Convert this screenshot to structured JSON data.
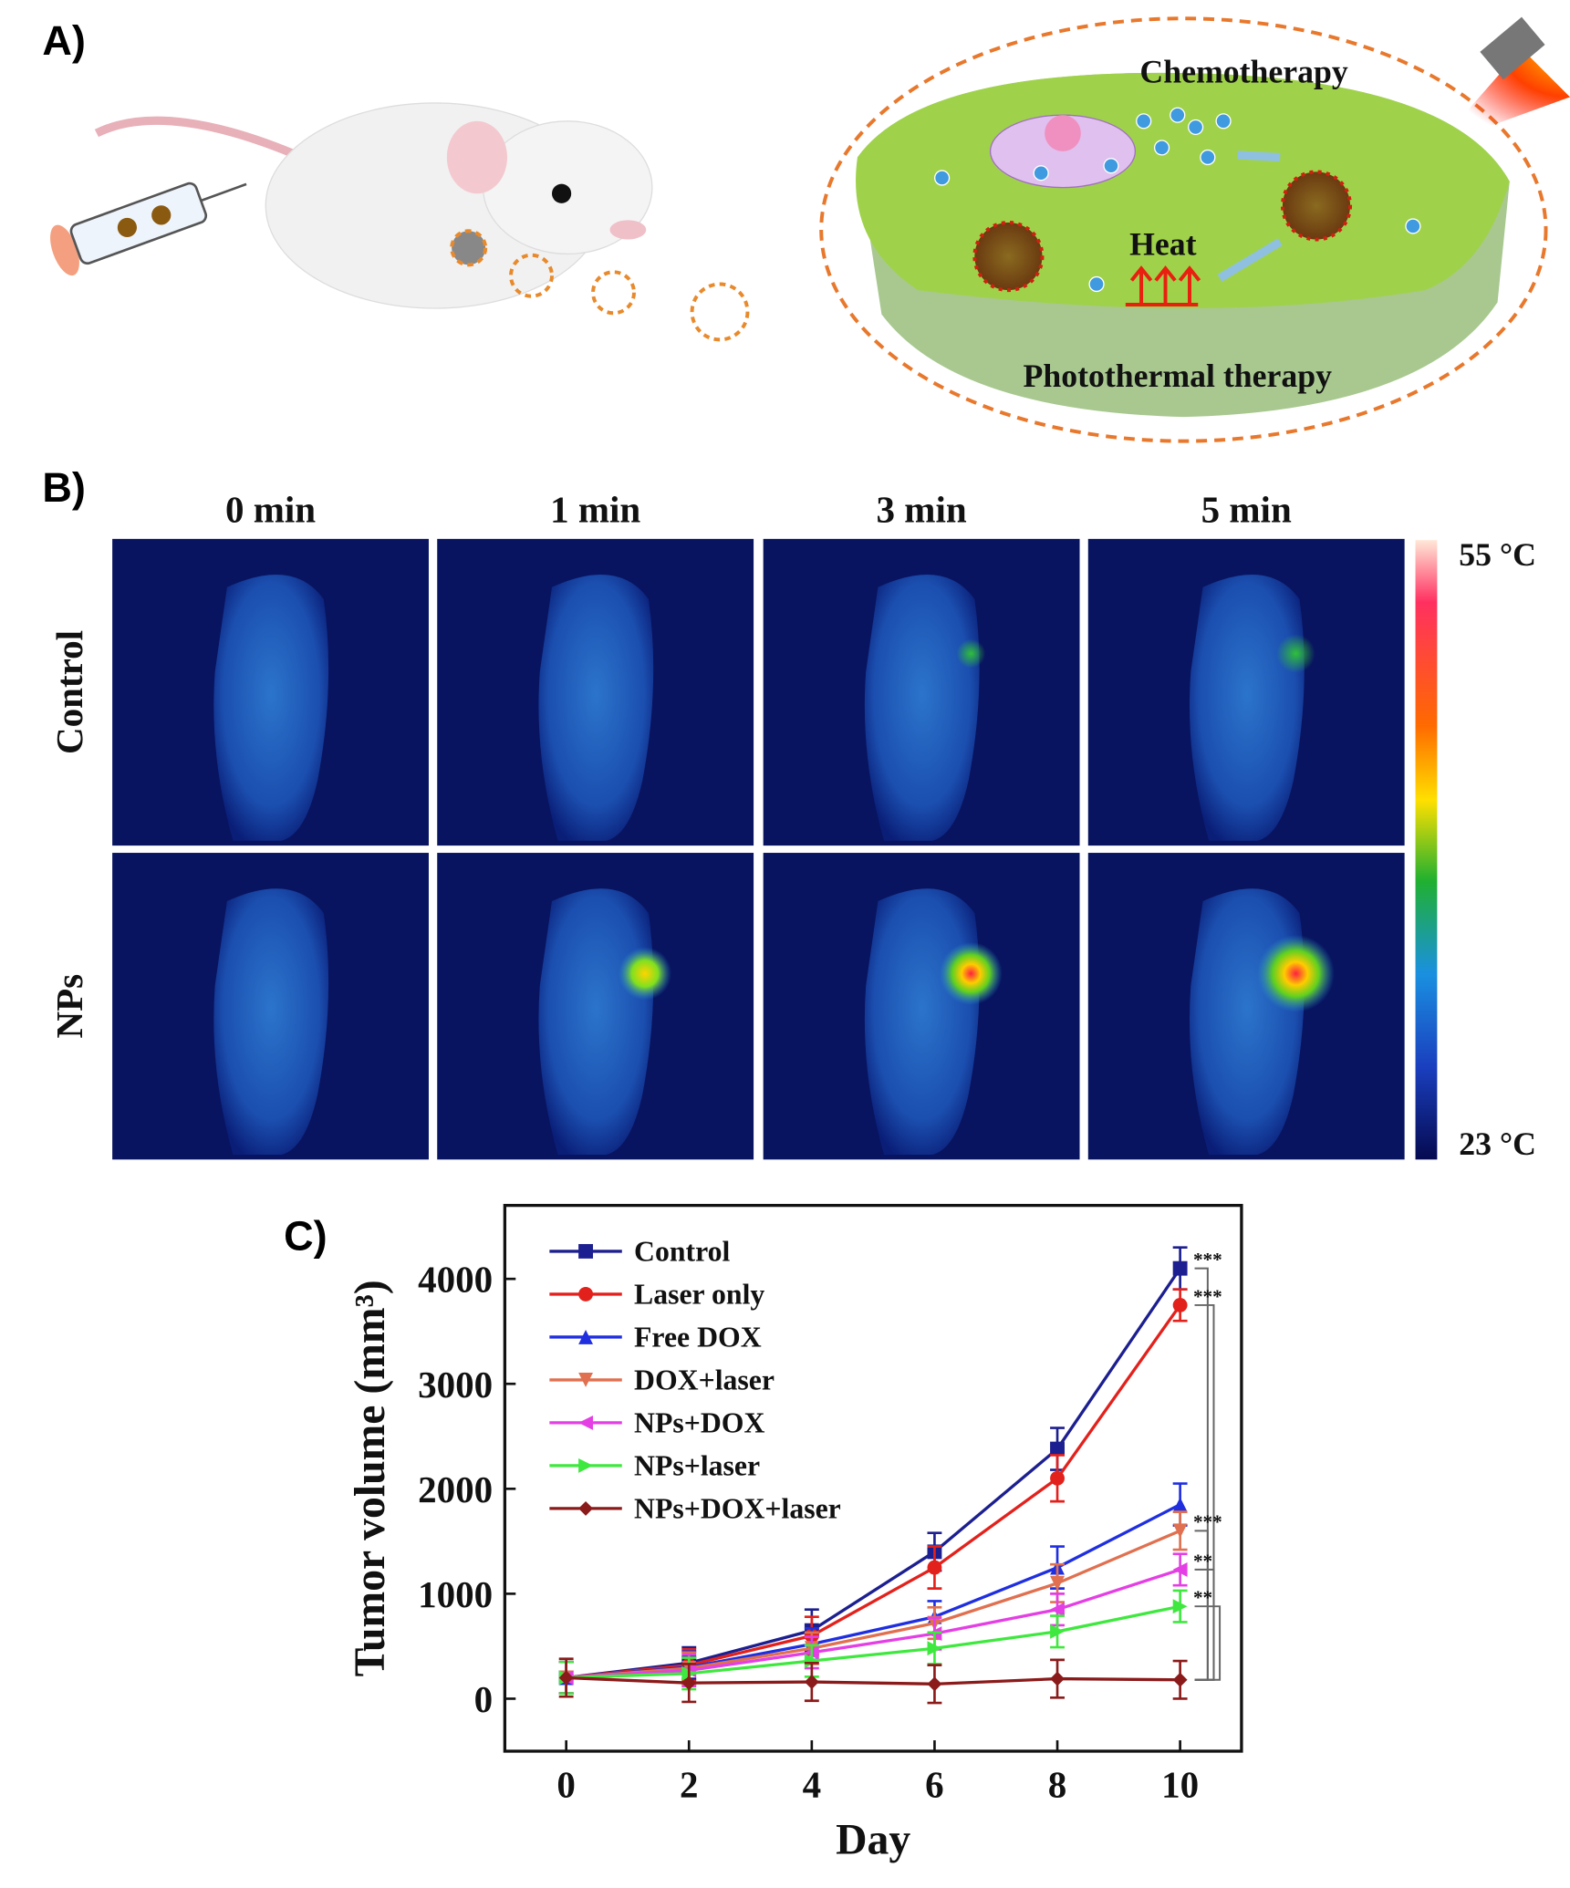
{
  "panel_a": {
    "label": "A)",
    "chemotherapy": "Chemotherapy",
    "heat": "Heat",
    "photothermal": "Photothermal therapy"
  },
  "panel_b": {
    "label": "B)",
    "columns": [
      "0 min",
      "1 min",
      "3 min",
      "5 min"
    ],
    "rows": [
      "Control",
      "NPs"
    ],
    "colorbar_max": "55 °C",
    "colorbar_min": "23 °C"
  },
  "panel_c_label": "C)",
  "chart_data": {
    "type": "line",
    "x_label": "Day",
    "y_label": "Tumor volume (mm³)",
    "x": [
      0,
      2,
      4,
      6,
      8,
      10
    ],
    "xlim": [
      -1,
      11
    ],
    "xticks": [
      0,
      2,
      4,
      6,
      8,
      10
    ],
    "ylim": [
      -500,
      4700
    ],
    "yticks": [
      0,
      1000,
      2000,
      3000,
      4000
    ],
    "legend": "upper-left",
    "series": [
      {
        "name": "Control",
        "color": "#1c1f8f",
        "marker": "square",
        "values": [
          200,
          340,
          650,
          1400,
          2380,
          4100
        ],
        "errors": [
          150,
          150,
          200,
          180,
          200,
          200
        ]
      },
      {
        "name": "Laser only",
        "color": "#e3211c",
        "marker": "circle",
        "values": [
          200,
          320,
          600,
          1250,
          2100,
          3750
        ],
        "errors": [
          150,
          150,
          180,
          200,
          220,
          150
        ]
      },
      {
        "name": "Free DOX",
        "color": "#1f2fe0",
        "marker": "triangle-up",
        "values": [
          200,
          300,
          520,
          780,
          1250,
          1850
        ],
        "errors": [
          150,
          150,
          150,
          150,
          200,
          200
        ]
      },
      {
        "name": "DOX+laser",
        "color": "#e07050",
        "marker": "triangle-down",
        "values": [
          200,
          290,
          480,
          720,
          1100,
          1600
        ],
        "errors": [
          150,
          150,
          150,
          150,
          180,
          180
        ]
      },
      {
        "name": "NPs+DOX",
        "color": "#e43fe4",
        "marker": "triangle-left",
        "values": [
          200,
          270,
          440,
          620,
          850,
          1230
        ],
        "errors": [
          150,
          150,
          150,
          150,
          150,
          150
        ]
      },
      {
        "name": "NPs+laser",
        "color": "#3fe83f",
        "marker": "triangle-right",
        "values": [
          200,
          240,
          360,
          480,
          640,
          880
        ],
        "errors": [
          150,
          150,
          150,
          150,
          150,
          150
        ]
      },
      {
        "name": "NPs+DOX+laser",
        "color": "#8b1a1a",
        "marker": "diamond",
        "values": [
          200,
          150,
          160,
          140,
          190,
          180
        ],
        "errors": [
          180,
          180,
          180,
          180,
          180,
          180
        ]
      }
    ],
    "annotations": [
      "***",
      "***",
      "***",
      "**",
      "**"
    ]
  }
}
